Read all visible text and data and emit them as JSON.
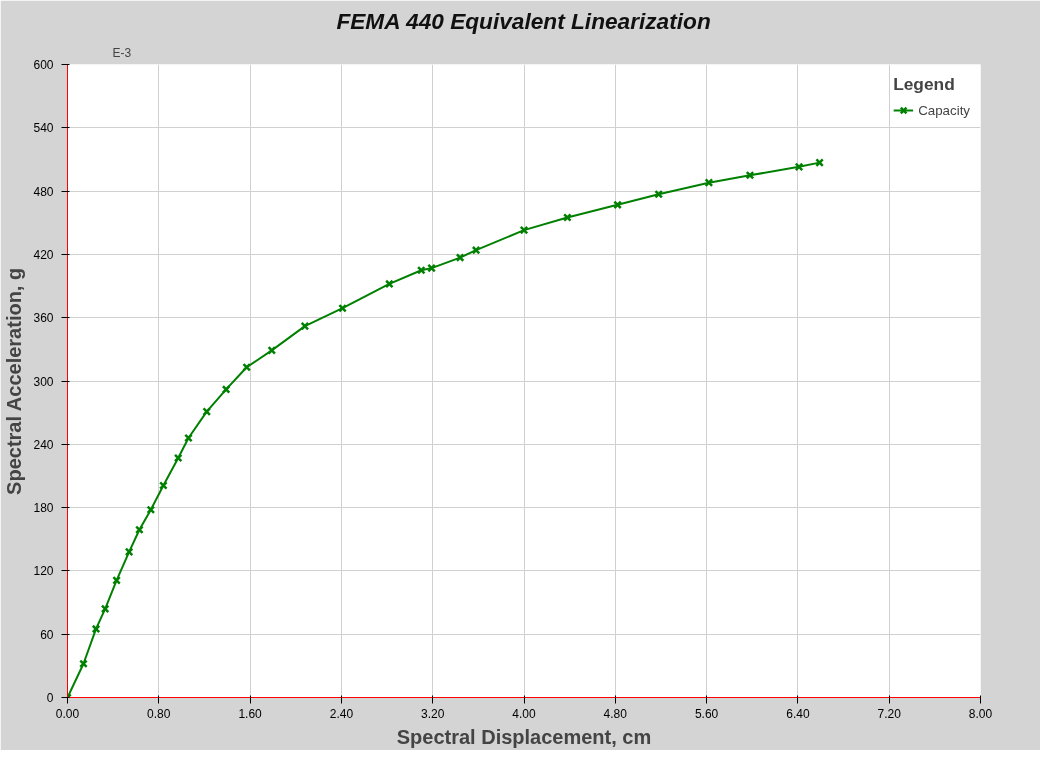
{
  "chart_data": {
    "type": "line",
    "title": "FEMA 440 Equivalent Linearization",
    "xlabel": "Spectral Displacement, cm",
    "ylabel": "Spectral Acceleration, g",
    "legend_title": "Legend",
    "annotations": [
      "E-3"
    ],
    "series": [
      {
        "name": "Capacity",
        "color": "#008000",
        "x": [
          0,
          0.14,
          0.25,
          0.33,
          0.43,
          0.54,
          0.63,
          0.73,
          0.84,
          0.97,
          1.06,
          1.22,
          1.39,
          1.57,
          1.79,
          2.08,
          2.41,
          2.82,
          3.1,
          3.19,
          3.44,
          3.58,
          4.0,
          4.38,
          4.82,
          5.18,
          5.62,
          5.98,
          6.41,
          6.59
        ],
        "values": [
          0,
          32,
          65,
          84,
          111,
          138,
          159,
          178,
          201,
          227,
          246,
          271,
          292,
          313,
          329,
          352,
          369,
          392,
          405,
          407,
          417,
          424,
          443,
          455,
          467,
          477,
          488,
          495,
          503,
          507
        ]
      }
    ],
    "xlim": [
      0,
      8
    ],
    "ylim": [
      0,
      600
    ],
    "xticks": [
      {
        "value": 0,
        "label": "0.00"
      },
      {
        "value": 0.8,
        "label": "0.80"
      },
      {
        "value": 1.6,
        "label": "1.60"
      },
      {
        "value": 2.4,
        "label": "2.40"
      },
      {
        "value": 3.2,
        "label": "3.20"
      },
      {
        "value": 4.0,
        "label": "4.00"
      },
      {
        "value": 4.8,
        "label": "4.80"
      },
      {
        "value": 5.6,
        "label": "5.60"
      },
      {
        "value": 6.4,
        "label": "6.40"
      },
      {
        "value": 7.2,
        "label": "7.20"
      },
      {
        "value": 8,
        "label": "8.00"
      }
    ],
    "yticks": [
      0,
      60,
      120,
      180,
      240,
      300,
      360,
      420,
      480,
      540,
      600
    ],
    "grid": true,
    "legend": "top right",
    "marker": "cross",
    "line_style": "solid"
  }
}
